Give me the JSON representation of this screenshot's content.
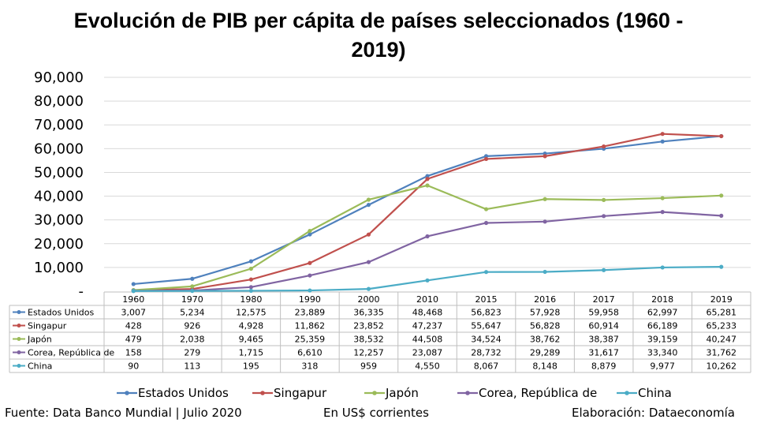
{
  "chart_data": {
    "type": "line",
    "title": "Evolución de PIB per cápita de países seleccionados (1960 - 2019)",
    "x": [
      "1960",
      "1970",
      "1980",
      "1990",
      "2000",
      "2010",
      "2015",
      "2016",
      "2017",
      "2018",
      "2019"
    ],
    "ylim": [
      0,
      90000
    ],
    "yticks": [
      0,
      10000,
      20000,
      30000,
      40000,
      50000,
      60000,
      70000,
      80000,
      90000
    ],
    "ytick_labels": [
      "-",
      "10,000",
      "20,000",
      "30,000",
      "40,000",
      "50,000",
      "60,000",
      "70,000",
      "80,000",
      "90,000"
    ],
    "grid": true,
    "legend_position": "bottom",
    "series": [
      {
        "name": "Estados Unidos",
        "color": "#4f81bd",
        "values": [
          3007,
          5234,
          12575,
          23889,
          36335,
          48468,
          56823,
          57928,
          59958,
          62997,
          65281
        ],
        "labels": [
          "3,007",
          "5,234",
          "12,575",
          "23,889",
          "36,335",
          "48,468",
          "56,823",
          "57,928",
          "59,958",
          "62,997",
          "65,281"
        ]
      },
      {
        "name": "Singapur",
        "color": "#c0504d",
        "values": [
          428,
          926,
          4928,
          11862,
          23852,
          47237,
          55647,
          56828,
          60914,
          66189,
          65233
        ],
        "labels": [
          "428",
          "926",
          "4,928",
          "11,862",
          "23,852",
          "47,237",
          "55,647",
          "56,828",
          "60,914",
          "66,189",
          "65,233"
        ]
      },
      {
        "name": "Japón",
        "color": "#9bbb59",
        "values": [
          479,
          2038,
          9465,
          25359,
          38532,
          44508,
          34524,
          38762,
          38387,
          39159,
          40247
        ],
        "labels": [
          "479",
          "2,038",
          "9,465",
          "25,359",
          "38,532",
          "44,508",
          "34,524",
          "38,762",
          "38,387",
          "39,159",
          "40,247"
        ]
      },
      {
        "name": "Corea, República de",
        "color": "#8064a2",
        "values": [
          158,
          279,
          1715,
          6610,
          12257,
          23087,
          28732,
          29289,
          31617,
          33340,
          31762
        ],
        "labels": [
          "158",
          "279",
          "1,715",
          "6,610",
          "12,257",
          "23,087",
          "28,732",
          "29,289",
          "31,617",
          "33,340",
          "31,762"
        ]
      },
      {
        "name": "China",
        "color": "#4bacc6",
        "values": [
          90,
          113,
          195,
          318,
          959,
          4550,
          8067,
          8148,
          8879,
          9977,
          10262
        ],
        "labels": [
          "90",
          "113",
          "195",
          "318",
          "959",
          "4,550",
          "8,067",
          "8,148",
          "8,879",
          "9,977",
          "10,262"
        ]
      }
    ]
  },
  "footer": {
    "source": "Fuente: Data Banco Mundial | Julio 2020",
    "units": "En US$ corrientes",
    "credit": "Elaboración: Dataeconomía"
  }
}
